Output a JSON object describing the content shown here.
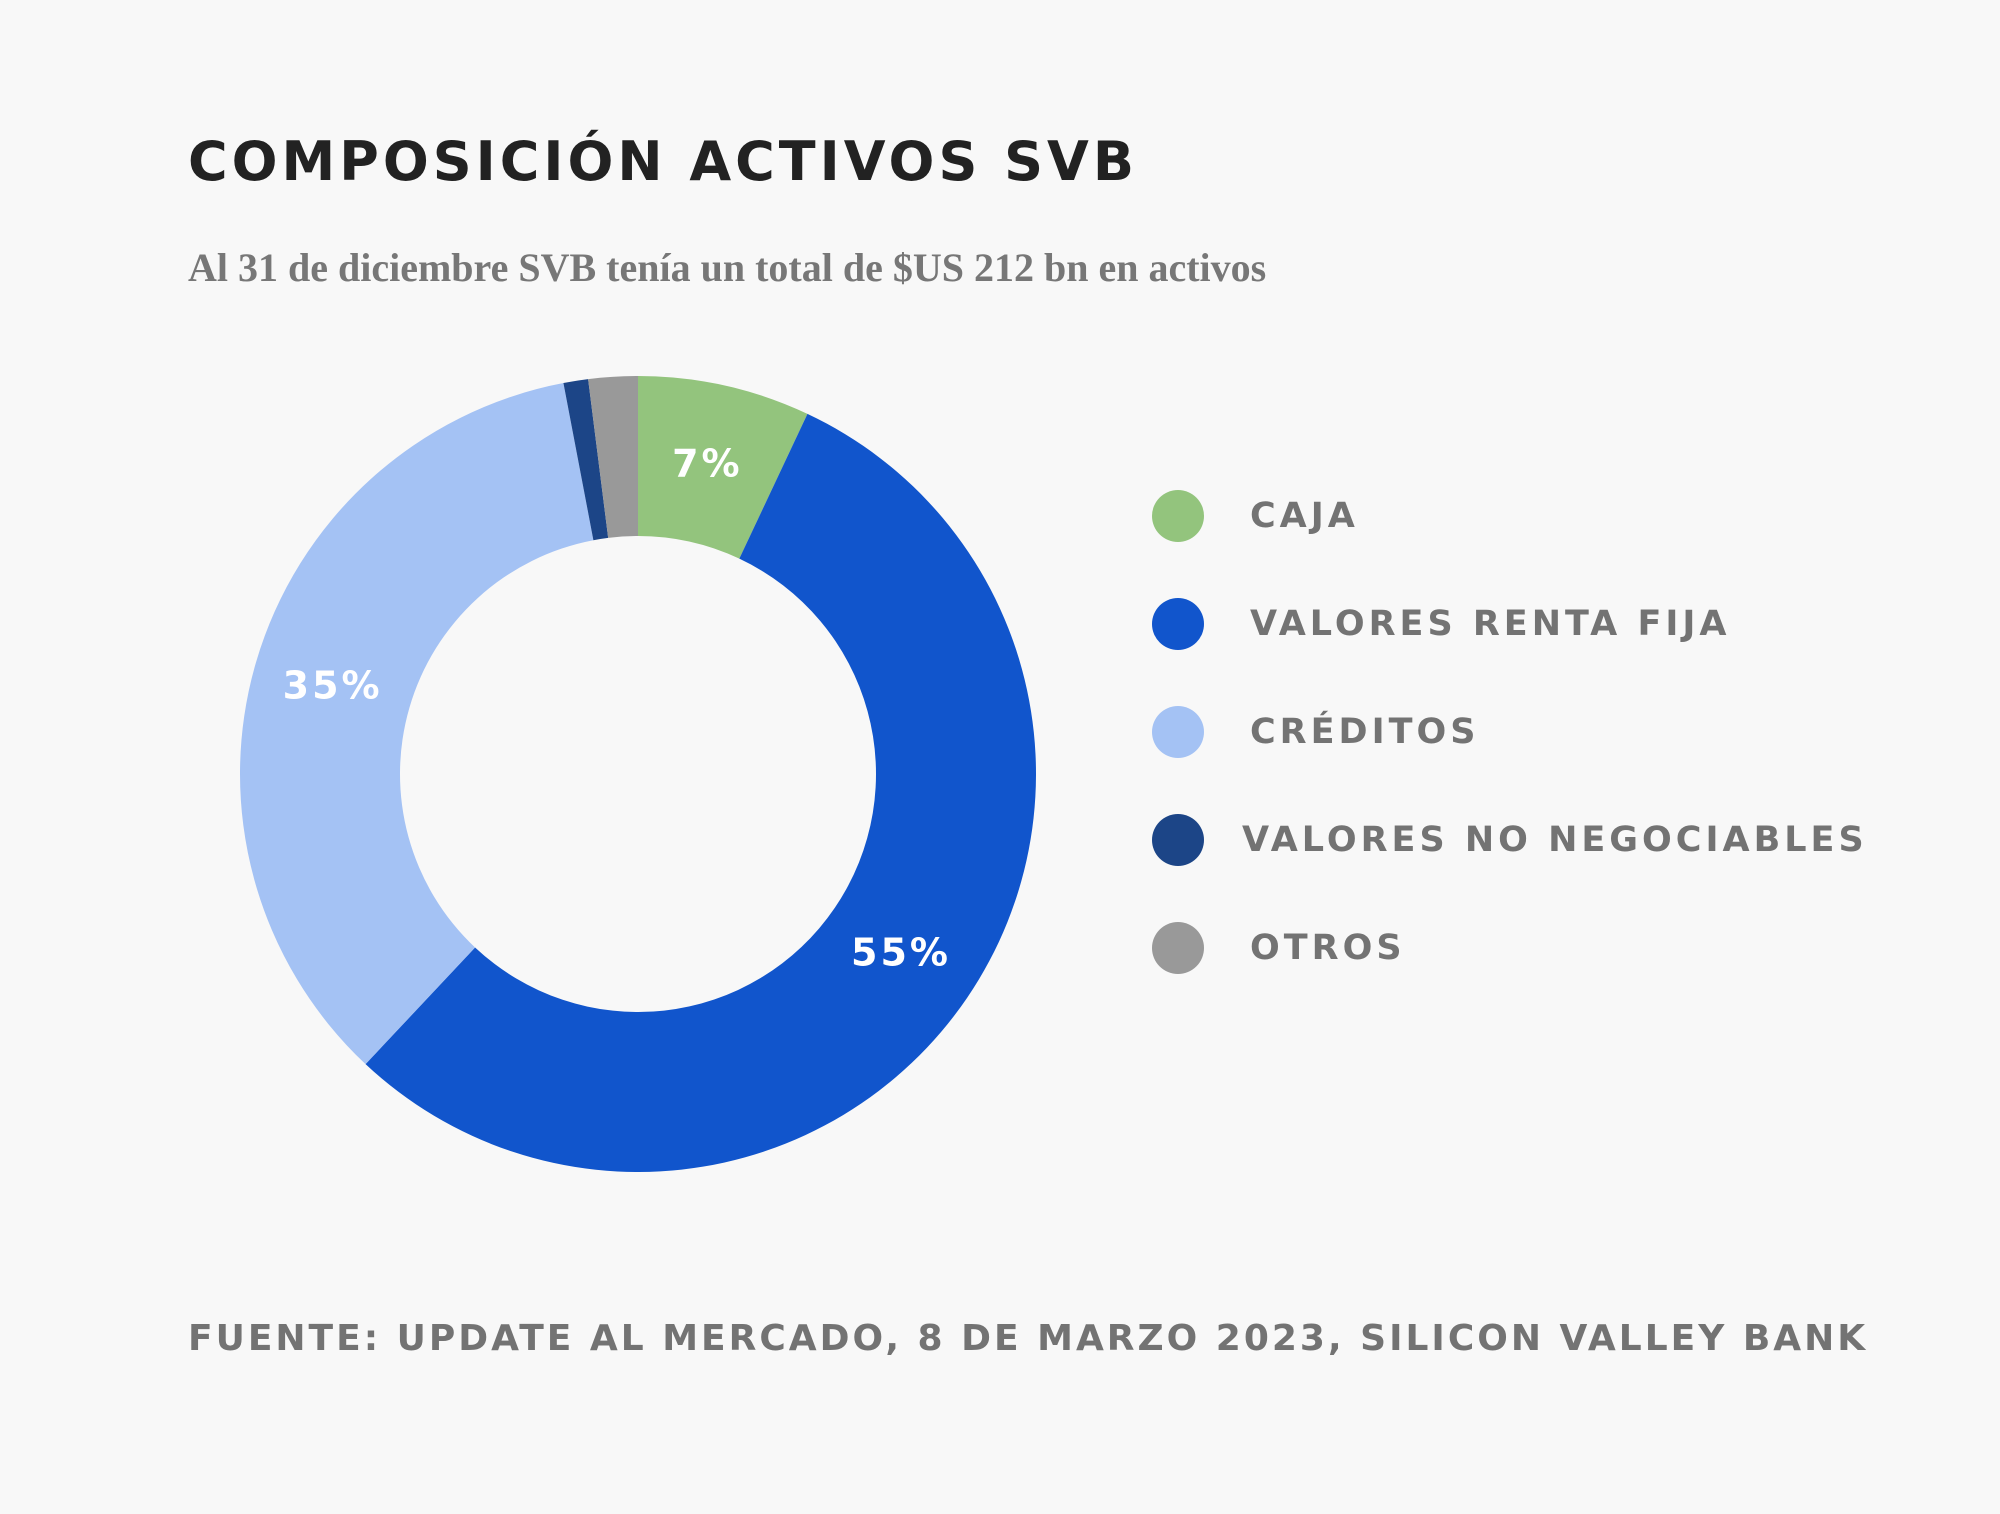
{
  "title": "COMPOSICIÓN ACTIVOS SVB",
  "subtitle": "Al 31 de diciembre SVB tenía un total de $US 212 bn en activos",
  "source": "FUENTE: UPDATE AL MERCADO, 8 DE MARZO 2023, SILICON VALLEY BANK",
  "chart_data": {
    "type": "pie",
    "donut": true,
    "start": "top",
    "direction": "clockwise",
    "categories": [
      "CAJA",
      "VALORES RENTA FIJA",
      "CRÉDITOS",
      "VALORES NO NEGOCIABLES",
      "OTROS"
    ],
    "values": [
      7,
      55,
      35,
      1,
      2
    ],
    "data_labels": [
      "7%",
      "55%",
      "35%",
      "",
      ""
    ],
    "colors": [
      "#93c47d",
      "#1155cc",
      "#a4c2f4",
      "#1c4587",
      "#999999"
    ],
    "legend_position": "right",
    "title": "COMPOSICIÓN ACTIVOS SVB"
  }
}
